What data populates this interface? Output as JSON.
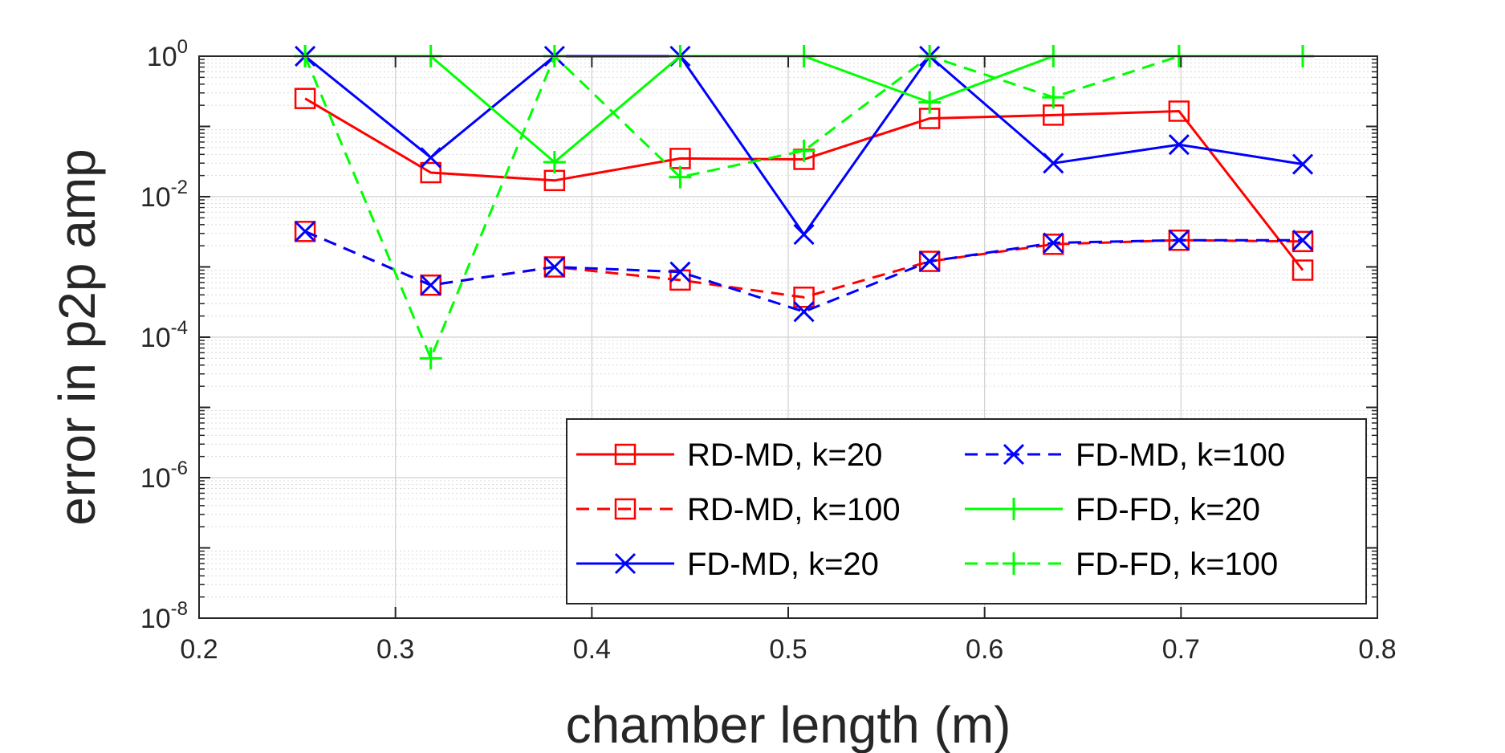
{
  "chart_data": {
    "type": "line",
    "title": "",
    "xlabel": "chamber length (m)",
    "ylabel": "error in p2p amp",
    "xlim": [
      0.2,
      0.8
    ],
    "ylim": [
      1e-08,
      1
    ],
    "yscale": "log",
    "grid": true,
    "minor_grid": true,
    "legend_position": "bottom-right",
    "legend_columns": 2,
    "x_ticks": [
      0.2,
      0.3,
      0.4,
      0.5,
      0.6,
      0.7,
      0.8
    ],
    "x_tick_labels": [
      "0.2",
      "0.3",
      "0.4",
      "0.5",
      "0.6",
      "0.7",
      "0.8"
    ],
    "y_ticks": [
      1e-08,
      1e-06,
      0.0001,
      0.01,
      1
    ],
    "y_tick_labels": [
      {
        "base": "10",
        "exp": "-8"
      },
      {
        "base": "10",
        "exp": "-6"
      },
      {
        "base": "10",
        "exp": "-4"
      },
      {
        "base": "10",
        "exp": "-2"
      },
      {
        "base": "10",
        "exp": "0"
      }
    ],
    "x": [
      0.254,
      0.318,
      0.381,
      0.445,
      0.508,
      0.572,
      0.635,
      0.699,
      0.762
    ],
    "series": [
      {
        "name": "RD-MD, k=20",
        "color": "#ff0000",
        "dash": "solid",
        "marker": "square",
        "values": [
          0.25,
          0.022,
          0.017,
          0.035,
          0.034,
          0.13,
          0.145,
          0.165,
          0.0009
        ]
      },
      {
        "name": "RD-MD, k=100",
        "color": "#ff0000",
        "dash": "dashed",
        "marker": "square",
        "values": [
          0.0032,
          0.00055,
          0.001,
          0.00065,
          0.00037,
          0.0012,
          0.0021,
          0.0024,
          0.0023
        ]
      },
      {
        "name": "FD-MD, k=20",
        "color": "#0000ff",
        "dash": "solid",
        "marker": "x",
        "values": [
          1.0,
          0.036,
          1.0,
          1.0,
          0.0029,
          1.0,
          0.03,
          0.055,
          0.029
        ]
      },
      {
        "name": "FD-MD, k=100",
        "color": "#0000ff",
        "dash": "dashed",
        "marker": "x",
        "values": [
          0.0032,
          0.00055,
          0.001,
          0.00085,
          0.00023,
          0.0012,
          0.0022,
          0.0024,
          0.0024
        ]
      },
      {
        "name": "FD-FD, k=20",
        "color": "#00ff00",
        "dash": "solid",
        "marker": "plus",
        "values": [
          1.0,
          1.0,
          0.031,
          1.0,
          1.0,
          0.22,
          1.0,
          1.0,
          1.0
        ]
      },
      {
        "name": "FD-FD, k=100",
        "color": "#00ff00",
        "dash": "dashed",
        "marker": "plus",
        "values": [
          1.0,
          5e-05,
          1.0,
          0.019,
          0.045,
          1.0,
          0.26,
          1.0,
          1.0
        ]
      }
    ]
  }
}
